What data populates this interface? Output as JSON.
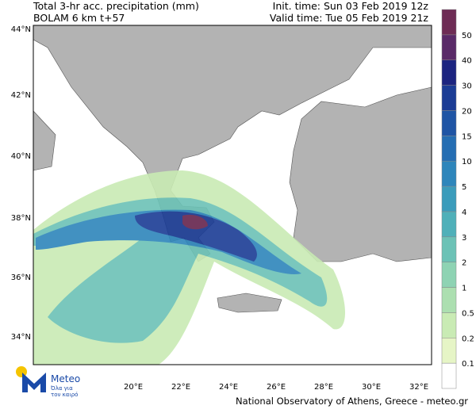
{
  "header": {
    "title": "Total 3-hr acc. precipitation (mm)",
    "model": "BOLAM 6 km t+57",
    "init_time": "Init. time: Sun 03 Feb 2019 12z",
    "valid_time": "Valid time: Tue 05 Feb 2019 21z"
  },
  "map": {
    "lat_labels": [
      "44°N",
      "42°N",
      "40°N",
      "38°N",
      "36°N",
      "34°N"
    ],
    "lon_labels": [
      "20°E",
      "22°E",
      "24°E",
      "26°E",
      "28°E",
      "30°E",
      "32°E"
    ]
  },
  "colorbar": {
    "levels": [
      0.1,
      0.2,
      0.5,
      1,
      2,
      3,
      4,
      5,
      10,
      15,
      20,
      30,
      40,
      50
    ],
    "colors": [
      "#ffffff",
      "#e6f5c6",
      "#c9ebb4",
      "#acdfb0",
      "#8ed3b3",
      "#6cc2b6",
      "#4fb0b9",
      "#3b9cbb",
      "#2e86bb",
      "#256eb3",
      "#1f55a5",
      "#1b3c95",
      "#1c2480",
      "#5a2a68",
      "#6e2c55"
    ]
  },
  "logo": {
    "name": "Meteo",
    "tagline_1": "Όλα για",
    "tagline_2": "τον καιρό"
  },
  "footer": "National Observatory of Athens, Greece - meteo.gr"
}
